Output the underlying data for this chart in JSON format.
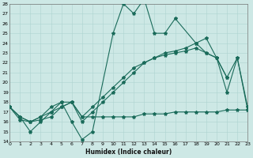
{
  "xlabel": "Humidex (Indice chaleur)",
  "ylabel": "",
  "background_color": "#cde8e5",
  "grid_color": "#aed4d0",
  "line_color": "#1a6b5a",
  "xlim": [
    0,
    23
  ],
  "ylim": [
    14,
    28
  ],
  "yticks": [
    14,
    15,
    16,
    17,
    18,
    19,
    20,
    21,
    22,
    23,
    24,
    25,
    26,
    27,
    28
  ],
  "xticks": [
    0,
    1,
    2,
    3,
    4,
    5,
    6,
    7,
    8,
    9,
    10,
    11,
    12,
    13,
    14,
    15,
    16,
    17,
    18,
    19,
    20,
    21,
    22,
    23
  ],
  "line1_x": [
    0,
    1,
    2,
    3,
    4,
    5,
    6,
    7,
    8,
    10,
    11,
    12,
    13,
    14,
    15,
    16,
    18,
    19,
    20,
    21
  ],
  "line1_y": [
    17.5,
    16.5,
    15.0,
    16.0,
    17.0,
    18.0,
    16.0,
    14.2,
    15.0,
    25.0,
    28.0,
    27.0,
    28.5,
    25.0,
    25.0,
    26.5,
    24.0,
    24.5,
    22.5,
    20.5
  ],
  "line2_x": [
    0,
    1,
    2,
    3,
    4,
    5,
    6,
    7,
    8,
    9,
    10,
    11,
    12,
    13,
    14,
    15,
    16,
    17,
    18,
    19,
    20,
    21,
    22,
    23
  ],
  "line2_y": [
    17.5,
    16.5,
    16.0,
    16.5,
    17.5,
    18.0,
    18.0,
    16.5,
    17.5,
    18.5,
    19.5,
    20.5,
    21.5,
    22.0,
    22.5,
    22.8,
    23.0,
    23.2,
    23.5,
    23.0,
    22.5,
    20.5,
    22.5,
    17.5
  ],
  "line3_x": [
    0,
    1,
    2,
    3,
    4,
    5,
    6,
    7,
    8,
    9,
    10,
    11,
    12,
    13,
    14,
    15,
    16,
    17,
    18,
    19,
    20,
    21,
    22,
    23
  ],
  "line3_y": [
    17.5,
    16.2,
    16.0,
    16.2,
    16.5,
    17.5,
    18.0,
    16.5,
    16.5,
    16.5,
    16.5,
    16.5,
    16.5,
    16.8,
    16.8,
    16.8,
    17.0,
    17.0,
    17.0,
    17.0,
    17.0,
    17.2,
    17.2,
    17.2
  ],
  "line4_x": [
    0,
    1,
    2,
    3,
    4,
    5,
    6,
    7,
    8,
    9,
    10,
    11,
    12,
    13,
    14,
    15,
    16,
    17,
    18,
    19,
    20,
    21,
    22,
    23
  ],
  "line4_y": [
    17.5,
    16.5,
    16.0,
    16.5,
    17.0,
    17.5,
    18.0,
    16.0,
    17.0,
    18.0,
    19.0,
    20.0,
    21.0,
    22.0,
    22.5,
    23.0,
    23.2,
    23.5,
    24.0,
    23.0,
    22.5,
    19.0,
    22.5,
    17.2
  ]
}
